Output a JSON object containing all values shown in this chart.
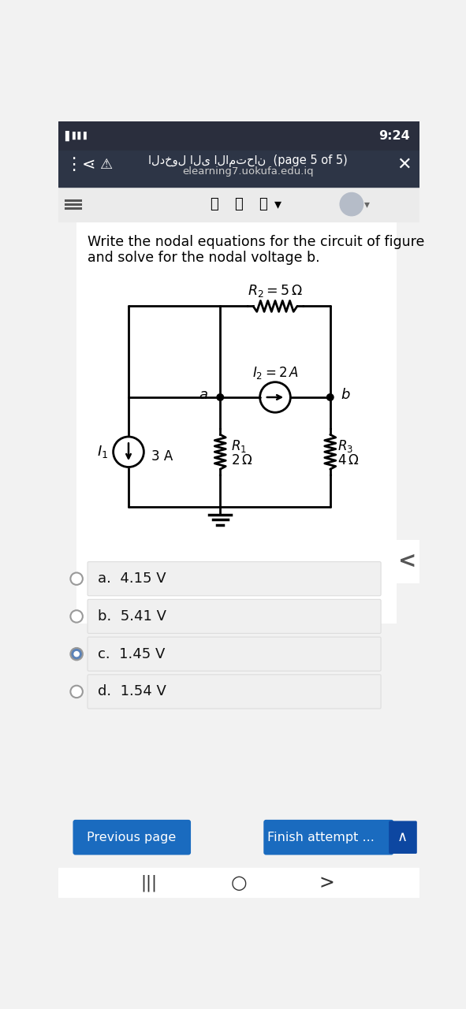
{
  "page_bg": "#f2f2f2",
  "content_bg": "#ffffff",
  "question_text_line1": "Write the nodal equations for the circuit of figure",
  "question_text_line2": "and solve for the nodal voltage b.",
  "r2_label": "$R_2 = 5\\,\\Omega$",
  "i2_label": "$I_2 = 2\\,A$",
  "node_a": "a",
  "node_b": "b",
  "i1_label": "$I_1$",
  "i1_current": "3 A",
  "r1_label": "$R_1$",
  "r1_value": "$2\\,\\Omega$",
  "r3_label": "$R_3$",
  "r3_value": "$4\\,\\Omega$",
  "options": [
    "a.  4.15 V",
    "b.  5.41 V",
    "c.  1.45 V",
    "d.  1.54 V"
  ],
  "selected_option": 2,
  "btn_color": "#1a6bbf",
  "btn_text_prev": "Previous page",
  "btn_text_finish": "Finish attempt ...",
  "header_url": "elearning7.uokufa.edu.iq",
  "header_page": "(page 5 of 5)",
  "header_arabic": "الدخول الى الامتحان",
  "time_text": "9:24",
  "nav_bg": "#2d3546",
  "status_bg": "#2a2e3d",
  "toolbar_bg": "#ebebeb"
}
